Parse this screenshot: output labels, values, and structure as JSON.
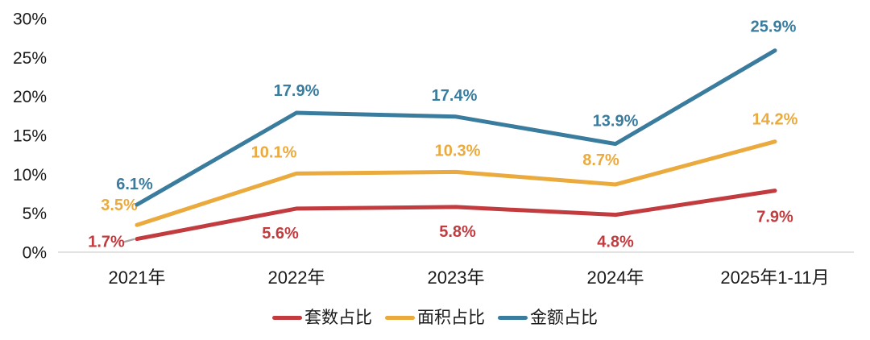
{
  "chart_data": {
    "type": "line",
    "title": "",
    "xlabel": "",
    "ylabel": "",
    "categories": [
      "2021年",
      "2022年",
      "2023年",
      "2024年",
      "2025年1-11月"
    ],
    "series": [
      {
        "name": "套数占比",
        "color": "#c23b3e",
        "values": [
          1.7,
          5.6,
          5.8,
          4.8,
          7.9
        ]
      },
      {
        "name": "面积占比",
        "color": "#eaaa3d",
        "values": [
          3.5,
          10.1,
          10.3,
          8.7,
          14.2
        ]
      },
      {
        "name": "金额占比",
        "color": "#3a7c9e",
        "values": [
          6.1,
          17.9,
          17.4,
          13.9,
          25.9
        ]
      }
    ],
    "value_suffix": "%",
    "ylim": [
      0,
      30
    ],
    "ytick_step": 5,
    "yticks": [
      "0%",
      "5%",
      "10%",
      "15%",
      "20%",
      "25%",
      "30%"
    ],
    "grid": false,
    "legend_position": "bottom",
    "axis_line_color": "#d9d9d9",
    "tick_text_color": "#1a1a1a",
    "start_dash_marker_color": "#a6a6a6"
  }
}
